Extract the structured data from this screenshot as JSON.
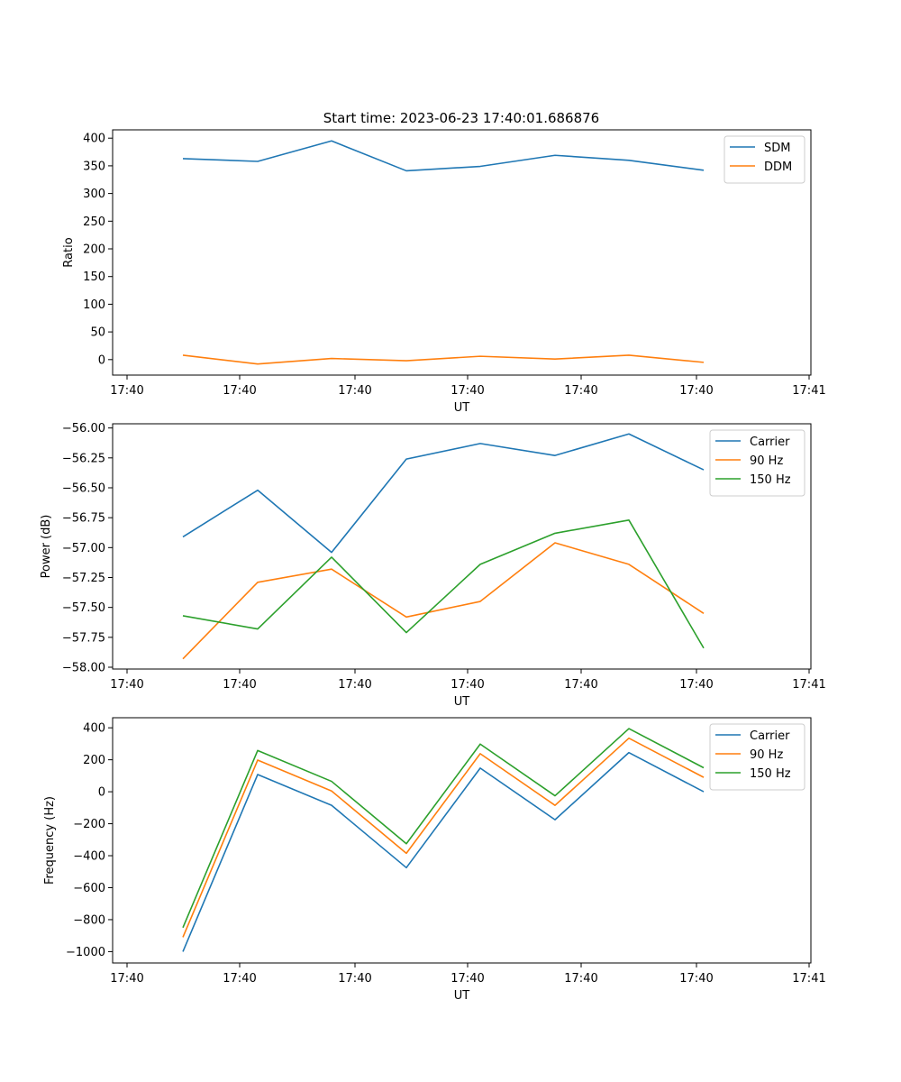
{
  "figure_title": "Start time: 2023-06-23 17:40:01.686876",
  "chart_data": [
    {
      "type": "line",
      "title": "Start time: 2023-06-23 17:40:01.686876",
      "xlabel": "UT",
      "ylabel": "Ratio",
      "x_tick_labels": [
        "17:40",
        "17:40",
        "17:40",
        "17:40",
        "17:40",
        "17:40",
        "17:40",
        "17:41"
      ],
      "y_ticks": [
        0,
        50,
        100,
        150,
        200,
        250,
        300,
        350,
        400
      ],
      "ylim": [
        -28,
        415
      ],
      "legend_position": "top-right",
      "series": [
        {
          "name": "SDM",
          "color": "#1f77b4",
          "values": [
            363,
            358,
            395,
            341,
            349,
            369,
            360,
            342
          ]
        },
        {
          "name": "DDM",
          "color": "#ff7f0e",
          "values": [
            8,
            -8,
            2,
            -2,
            6,
            1,
            8,
            -5
          ]
        }
      ]
    },
    {
      "type": "line",
      "title": "",
      "xlabel": "UT",
      "ylabel": "Power (dB)",
      "x_tick_labels": [
        "17:40",
        "17:40",
        "17:40",
        "17:40",
        "17:40",
        "17:40",
        "17:40",
        "17:41"
      ],
      "y_ticks": [
        -58.0,
        -57.75,
        -57.5,
        -57.25,
        -57.0,
        -56.75,
        -56.5,
        -56.25,
        -56.0
      ],
      "y_tick_labels": [
        "−58.00",
        "−57.75",
        "−57.50",
        "−57.25",
        "−57.00",
        "−56.75",
        "−56.50",
        "−56.25",
        "−56.00"
      ],
      "ylim": [
        -58.015,
        -55.965
      ],
      "legend_position": "top-right",
      "series": [
        {
          "name": "Carrier",
          "color": "#1f77b4",
          "values": [
            -56.91,
            -56.52,
            -57.04,
            -56.26,
            -56.13,
            -56.23,
            -56.05,
            -56.35
          ]
        },
        {
          "name": "90 Hz",
          "color": "#ff7f0e",
          "values": [
            -57.93,
            -57.29,
            -57.18,
            -57.58,
            -57.45,
            -56.96,
            -57.14,
            -57.55
          ]
        },
        {
          "name": "150 Hz",
          "color": "#2ca02c",
          "values": [
            -57.57,
            -57.68,
            -57.08,
            -57.71,
            -57.14,
            -56.88,
            -56.77,
            -57.84
          ]
        }
      ]
    },
    {
      "type": "line",
      "title": "",
      "xlabel": "UT",
      "ylabel": "Frequency (Hz)",
      "x_tick_labels": [
        "17:40",
        "17:40",
        "17:40",
        "17:40",
        "17:40",
        "17:40",
        "17:40",
        "17:41"
      ],
      "y_ticks": [
        -1000,
        -800,
        -600,
        -400,
        -200,
        0,
        200,
        400
      ],
      "y_tick_labels": [
        "−1000",
        "−800",
        "−600",
        "−400",
        "−200",
        "0",
        "200",
        "400"
      ],
      "ylim": [
        -1071,
        463
      ],
      "legend_position": "top-right",
      "series": [
        {
          "name": "Carrier",
          "color": "#1f77b4",
          "values": [
            -1000,
            108,
            -85,
            -475,
            148,
            -175,
            245,
            0
          ]
        },
        {
          "name": "90 Hz",
          "color": "#ff7f0e",
          "values": [
            -910,
            198,
            5,
            -385,
            238,
            -85,
            335,
            90
          ]
        },
        {
          "name": "150 Hz",
          "color": "#2ca02c",
          "values": [
            -850,
            258,
            65,
            -325,
            298,
            -25,
            395,
            150
          ]
        }
      ]
    }
  ]
}
